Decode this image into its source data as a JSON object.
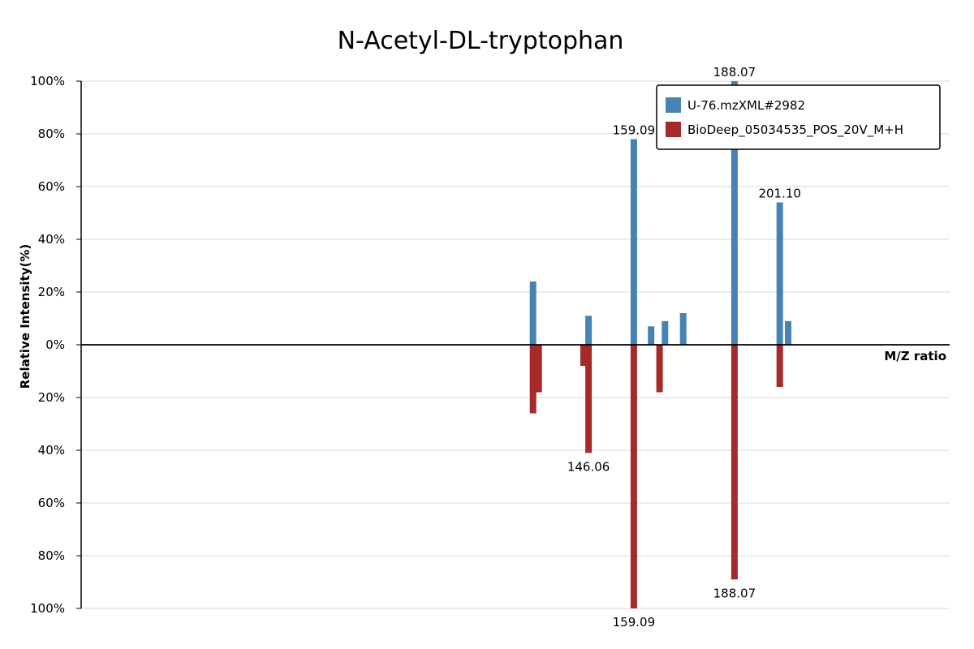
{
  "chart_data": {
    "type": "bar",
    "title": "N-Acetyl-DL-tryptophan",
    "xlabel": "M/Z ratio",
    "ylabel": "Relative Intensity(%)",
    "yticks_top": [
      "100%",
      "80%",
      "60%",
      "40%",
      "20%",
      "0%"
    ],
    "yticks_bottom": [
      "20%",
      "40%",
      "60%",
      "80%",
      "100%"
    ],
    "ylim": [
      -100,
      100
    ],
    "xlim": [
      0,
      250
    ],
    "grid": true,
    "legend_position": "top-right",
    "series": [
      {
        "name": "U-76.mzXML#2982",
        "color": "#4682b4",
        "direction": "up",
        "peaks": [
          {
            "mz": 130.06,
            "intensity": 24
          },
          {
            "mz": 146.06,
            "intensity": 11
          },
          {
            "mz": 159.09,
            "intensity": 78,
            "label": "159.09"
          },
          {
            "mz": 164.07,
            "intensity": 7
          },
          {
            "mz": 168.07,
            "intensity": 9
          },
          {
            "mz": 173.3,
            "intensity": 12
          },
          {
            "mz": 188.07,
            "intensity": 100,
            "label": "188.07"
          },
          {
            "mz": 201.1,
            "intensity": 54,
            "label": "201.10"
          },
          {
            "mz": 203.5,
            "intensity": 9
          }
        ]
      },
      {
        "name": "BioDeep_05034535_POS_20V_M+H",
        "color": "#a52a2a",
        "direction": "down",
        "peaks": [
          {
            "mz": 130.06,
            "intensity": 26
          },
          {
            "mz": 131.7,
            "intensity": 18
          },
          {
            "mz": 144.6,
            "intensity": 8
          },
          {
            "mz": 146.06,
            "intensity": 41,
            "label": "146.06"
          },
          {
            "mz": 159.09,
            "intensity": 100,
            "label": "159.09"
          },
          {
            "mz": 166.5,
            "intensity": 18
          },
          {
            "mz": 188.07,
            "intensity": 89,
            "label": "188.07"
          },
          {
            "mz": 201.1,
            "intensity": 16
          }
        ]
      }
    ]
  }
}
